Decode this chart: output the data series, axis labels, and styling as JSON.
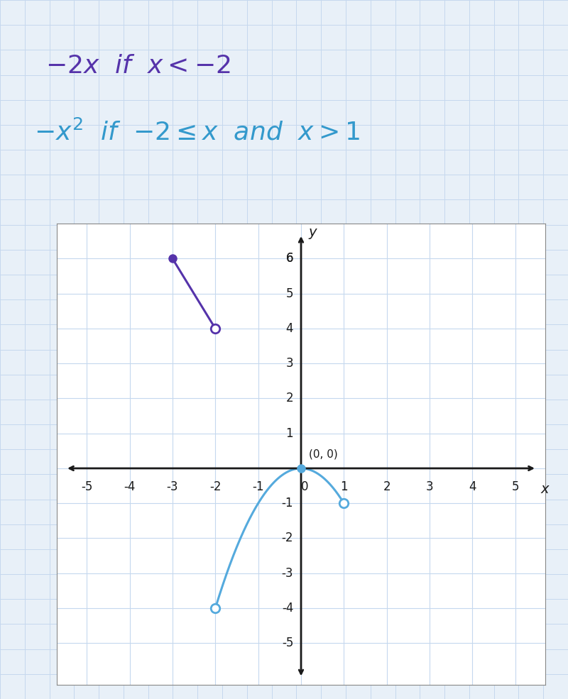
{
  "xlim": [
    -5.7,
    5.7
  ],
  "ylim": [
    -6.2,
    7.0
  ],
  "xticks": [
    -5,
    -4,
    -3,
    -2,
    -1,
    0,
    1,
    2,
    3,
    4,
    5
  ],
  "yticks": [
    -5,
    -4,
    -3,
    -2,
    -1,
    1,
    2,
    3,
    4,
    5,
    6
  ],
  "grid_color": "#c5d8ee",
  "page_bg_color": "#e8f0f8",
  "graph_bg_color": "#ffffff",
  "line1_color": "#5533aa",
  "line2_color": "#55aadd",
  "ax_color": "#1a1a1a",
  "text_color1": "#5533aa",
  "text_color2": "#3399cc",
  "tick_fontsize": 12,
  "label_00": "(0, 0)",
  "axis_label_x": "x",
  "axis_label_y": "y",
  "eq1": "-2x  if  x < -2",
  "eq2": "-x²  if  -2 ≤ x  and  x > 1"
}
